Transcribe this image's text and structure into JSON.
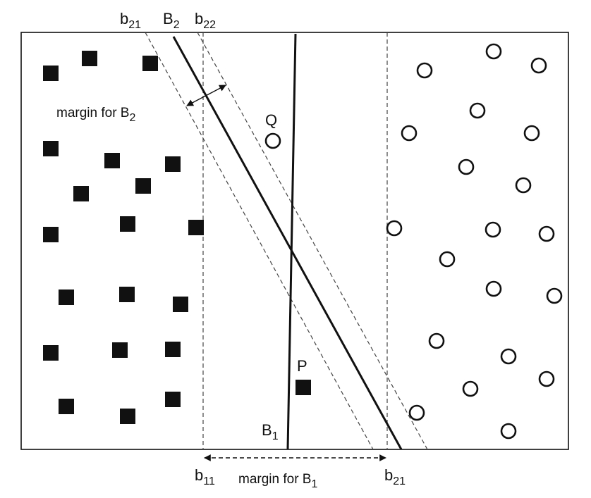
{
  "labels": {
    "b21_top": {
      "base": "b",
      "sub": "21"
    },
    "B2_top": {
      "base": "B",
      "sub": "2"
    },
    "b22_top": {
      "base": "b",
      "sub": "22"
    },
    "b11_bottom": {
      "base": "b",
      "sub": "11"
    },
    "b21_bottom": {
      "base": "b",
      "sub": "21"
    },
    "B1_bottom": {
      "base": "B",
      "sub": "1"
    },
    "Q": "Q",
    "P": "P"
  },
  "annotations": {
    "margin_b2": {
      "text": "margin for B",
      "sub": "2"
    },
    "margin_b1": {
      "text": "margin for B",
      "sub": "1"
    }
  },
  "colors": {
    "ink": "#111111",
    "background": "#ffffff"
  }
}
